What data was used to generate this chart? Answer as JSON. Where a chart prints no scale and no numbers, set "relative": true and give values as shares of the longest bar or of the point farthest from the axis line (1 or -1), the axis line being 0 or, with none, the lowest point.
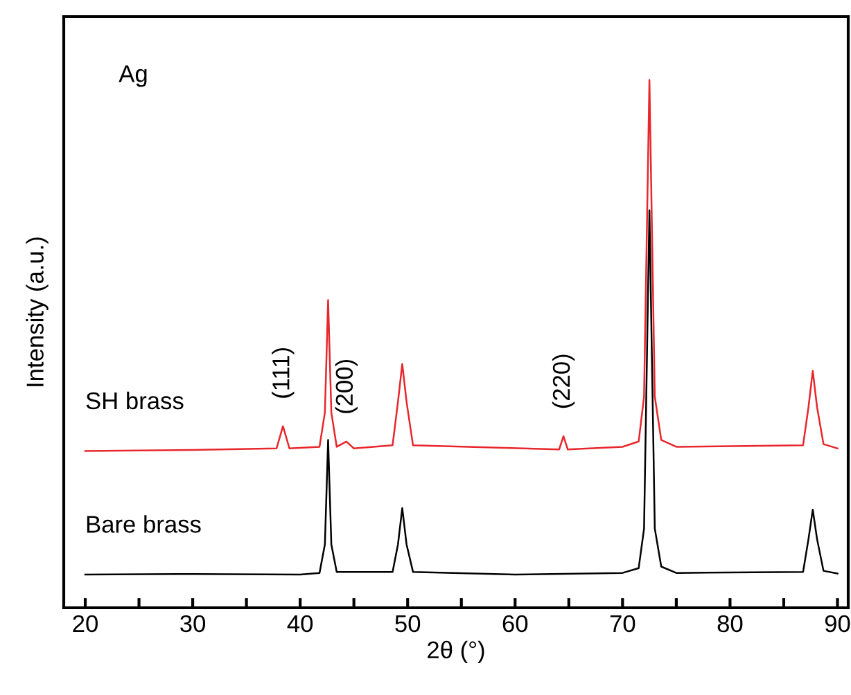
{
  "chart_data": {
    "type": "line",
    "relative": true,
    "xlabel": "2θ (°)",
    "ylabel": "Intensity (a.u.)",
    "xlim": [
      18,
      91
    ],
    "xticks": [
      20,
      {
        "value": 25,
        "label": null
      },
      30,
      {
        "value": 35,
        "label": null
      },
      40,
      {
        "value": 45,
        "label": null
      },
      50,
      {
        "value": 55,
        "label": null
      },
      60,
      {
        "value": 65,
        "label": null
      },
      70,
      {
        "value": 75,
        "label": null
      },
      80,
      {
        "value": 85,
        "label": null
      },
      90
    ],
    "tick_labels": "x",
    "grid": false,
    "legend": false,
    "marker": "none",
    "line_style": "solid",
    "series": [
      {
        "name": "SH brass",
        "color": "#e8262b",
        "x": [
          20,
          30,
          37.8,
          38.4,
          39.0,
          41.8,
          42.3,
          42.6,
          42.9,
          43.4,
          44.3,
          45,
          48.6,
          49.1,
          49.5,
          49.9,
          50.5,
          64.1,
          64.5,
          64.9,
          70,
          71.5,
          72.0,
          72.5,
          73.0,
          73.6,
          75,
          86.8,
          87.3,
          87.7,
          88.1,
          88.7,
          90
        ],
        "values": [
          0.297,
          0.299,
          0.302,
          0.344,
          0.302,
          0.305,
          0.37,
          0.583,
          0.37,
          0.305,
          0.315,
          0.302,
          0.308,
          0.39,
          0.462,
          0.39,
          0.308,
          0.3,
          0.325,
          0.3,
          0.305,
          0.315,
          0.4,
          1,
          0.4,
          0.318,
          0.305,
          0.308,
          0.38,
          0.449,
          0.38,
          0.31,
          0.302
        ]
      },
      {
        "name": "Bare brass",
        "color": "#000000",
        "x": [
          20,
          30,
          40,
          41.8,
          42.3,
          42.6,
          42.9,
          43.4,
          48.6,
          49.1,
          49.5,
          49.9,
          50.5,
          60,
          70,
          71.5,
          72.0,
          72.5,
          73.0,
          73.6,
          75,
          86.8,
          87.3,
          87.7,
          88.1,
          88.7,
          90
        ],
        "values": [
          0.063,
          0.064,
          0.063,
          0.066,
          0.12,
          0.318,
          0.12,
          0.068,
          0.068,
          0.12,
          0.189,
          0.12,
          0.068,
          0.063,
          0.066,
          0.075,
          0.15,
          0.753,
          0.15,
          0.078,
          0.066,
          0.068,
          0.13,
          0.186,
          0.13,
          0.07,
          0.065
        ]
      }
    ],
    "annotations": [
      "Ag",
      {
        "text": "(111)",
        "x": 38.4,
        "y": 0.344
      },
      {
        "text": "(200)",
        "x": 44.3,
        "y": 0.315
      },
      {
        "text": "(220)",
        "x": 64.5,
        "y": 0.325
      }
    ]
  }
}
